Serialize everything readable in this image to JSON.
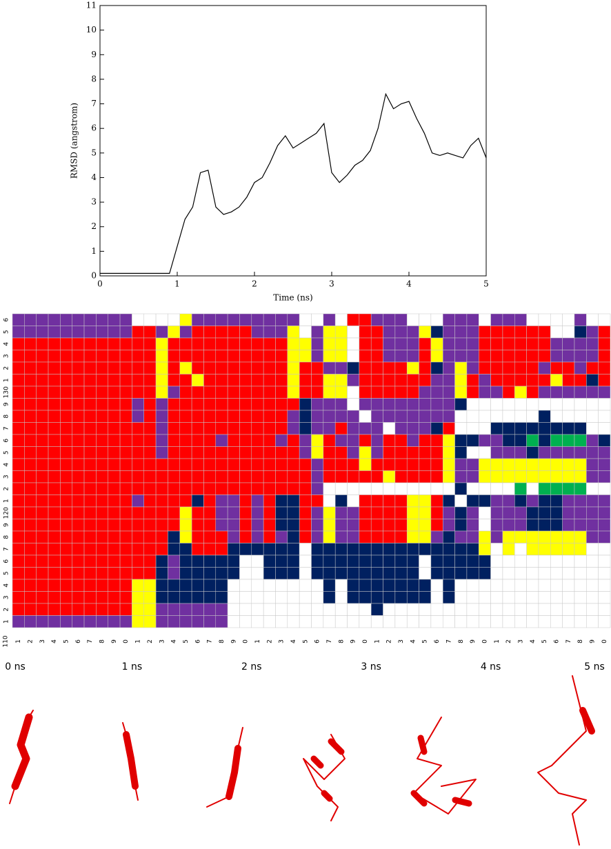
{
  "chart_data": {
    "type": "line",
    "x_label": "Time (ns)",
    "y_label": "RMSD (angstrom)",
    "x": [
      0,
      0.1,
      0.2,
      0.3,
      0.4,
      0.5,
      0.6,
      0.7,
      0.8,
      0.9,
      1,
      1.1,
      1.2,
      1.3,
      1.4,
      1.5,
      1.6,
      1.7,
      1.8,
      1.9,
      2,
      2.1,
      2.2,
      2.3,
      2.4,
      2.5,
      2.6,
      2.7,
      2.8,
      2.9,
      3,
      3.1,
      3.2,
      3.3,
      3.4,
      3.5,
      3.6,
      3.7,
      3.8,
      3.9,
      4,
      4.1,
      4.2,
      4.3,
      4.4,
      4.5,
      4.6,
      4.7,
      4.8,
      4.9,
      5
    ],
    "values": [
      0.1,
      0.1,
      0.1,
      0.1,
      0.1,
      0.1,
      0.1,
      0.1,
      0.1,
      0.1,
      1.2,
      2.3,
      2.8,
      4.2,
      4.3,
      2.8,
      2.5,
      2.6,
      2.8,
      3.2,
      3.8,
      4.0,
      4.6,
      5.3,
      5.7,
      5.2,
      5.4,
      5.6,
      5.8,
      6.2,
      4.2,
      3.8,
      4.1,
      4.5,
      4.7,
      5.1,
      6.0,
      7.4,
      6.8,
      7.0,
      7.1,
      6.4,
      5.8,
      5.0,
      4.9,
      5.0,
      4.9,
      4.8,
      5.3,
      5.6,
      4.8
    ],
    "color": "#000000",
    "xlim": [
      0,
      5
    ],
    "xticks": [
      0,
      1,
      2,
      3,
      4,
      5
    ],
    "ylim": [
      0,
      11
    ],
    "yticks": [
      0,
      1,
      2,
      3,
      4,
      5,
      6,
      7,
      8,
      9,
      10,
      11
    ]
  },
  "ss_map": {
    "corner_label": "110",
    "row_labels": [
      "6",
      "5",
      "4",
      "3",
      "2",
      "1",
      "130",
      "9",
      "8",
      "7",
      "6",
      "5",
      "4",
      "3",
      "2",
      "1",
      "120",
      "9",
      "8",
      "7",
      "6",
      "5",
      "4",
      "3",
      "2",
      "1"
    ],
    "column_labels": [
      "1",
      "2",
      "3",
      "4",
      "5",
      "6",
      "7",
      "8",
      "9",
      "0",
      "1",
      "2",
      "3",
      "4",
      "5",
      "6",
      "7",
      "8",
      "9",
      "0",
      "1",
      "2",
      "3",
      "4",
      "5",
      "6",
      "7",
      "8",
      "9",
      "0",
      "1",
      "2",
      "3",
      "4",
      "5",
      "6",
      "7",
      "8",
      "9",
      "0",
      "1",
      "2",
      "3",
      "4",
      "5",
      "6",
      "7",
      "8",
      "9",
      "0"
    ],
    "time_labels": [
      "0 ns",
      "1 ns",
      "2 ns",
      "3 ns",
      "4 ns",
      "5 ns"
    ],
    "colors": {
      "H": "#ff0000",
      "P": "#7030a0",
      "Y": "#ffff00",
      "N": "#002060",
      "G": "#00b050",
      "W": "#ffffff"
    },
    "rows": [
      "PPPPPPPPPPWWWWYPPPPPPPPPWWPWHHPPPWWWPPPWPPPWWWWPWW",
      "PPPPPPPPPPHHPYPHHHHHPPPYWPYYWHHPPPYNPPPHHHHHHWWNPH",
      "HHHHHHHHHHHHYHHHHHHHHHHYYPYYWHHPPPHYPPPHHHHHHPPPPH",
      "HHHHHHHHHHHHYHHHHHHHHHHYYPYYWHHPPPHYPPPHHHHHHPPPPH",
      "HHHHHHHHHHHHYHYHHHHHHHHYHHPPNHHHHYHNPYPHHHHHPHHPHH",
      "HHHHHHHHHHHHYHHYHHHHHHHYHHYYPHHHHHHPPYHPHHHHHYHHNH",
      "HHHHHHHHHHHHYPHHHHHHHHHYHHYYWHHHHHPPPYHPPHYHPPPPPP",
      "HHHHHHHHHHPHPHHHHHHHHHHHNPPPWPPPPPPPPNWWWWWWWWWWWW",
      "HHHHHHHHHHPHPHHHHHHHHHHPNPPPPWPPPPPPPWWWWWWWNWWWWW",
      "HHHHHHHHHHHHPHHHHHHHHHHPNPPHPPPWPPPNHWWWNNNNNNNNWW",
      "HHHHHHHHHHHHPHHHHPHHHHPHPYHPPHPHHPHHYNNPPNNGNGGGPN",
      "HHHHHHHHHHHHPHHHHHHHHHHHPYHHPYPHHHHHYNWWPPPNPPPPPP",
      "HHHHHHHHHHHHHHHHHHHHHHHHHPHHHYHHHHHHYPPYYYYYYYYYPP",
      "HHHHHHHHHHHHHHHHHHHHHHHHHPHHHHHYHHHHYPPYYYYYYYYYPP",
      "HHHHHHHHHHHHHHHHHHHHHHHHHPWWWWWWWWWWWNWWWWGWGGGGWW",
      "HHHHHHHHHHPHHHHNHPPHPHNNHHWNWHHHHYYHNWNNPPNPNNPPPP",
      "HHHHHHHHHHHHHHYHHPPHPHNNHPYPPHHHHYYHPNPWPPPNNNPPPP",
      "HHHHHHHHHHHHHHYHHPPHPHNNHPYPPHHHHYYHPNPWPPPNNNPPPP",
      "HHHHHHHHHHHHHNYHHHPHPHPNHPYPPHHHHYYPNPPYPYYYYYYYPP",
      "HHHHHHHHHHHHHNNHHHNNNNNNWNNNNNNNNNNNNNNYWYWYYYYYWW",
      "HHHHHHHHHHHHNPNNNNNWWNNNWNNNNNNNNNWNNNNNWWWWWWWWWW",
      "HHHHHHHHHHHHNPNNNNNWWNNNWNNNNNNNNNWNNNNNWWWWWWWWWW",
      "HHHHHHHHHHYYNNNNNNWWWWWWWWNWNNNNNNNWNWWWWWWWWWWWWW",
      "HHHHHHHHHHYYNNNNNNWWWWWWWWNWNNNNNNNWNWWWWWWWWWWWWW",
      "HHHHHHHHHHYYPPPPPPWWWWWWWWWWWWNWWWWWWWWWWWWWWWWWWW",
      "PPPPPPPPPPYYPPPPPPWWWWWWWWWWWWWWWWWWWWWWWWWWWWWWWW"
    ]
  }
}
